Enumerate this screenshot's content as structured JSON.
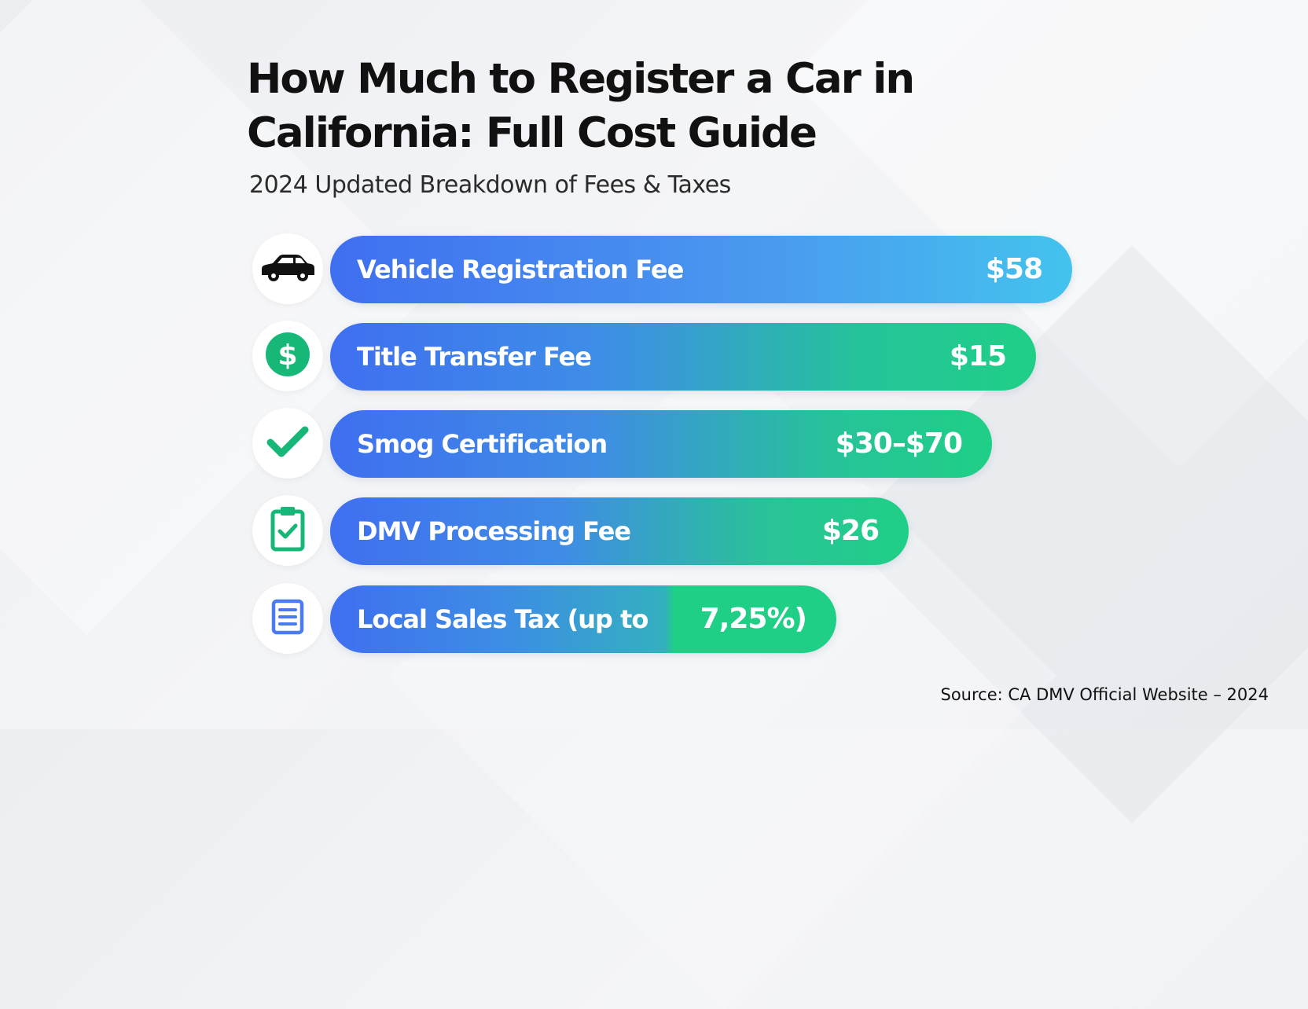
{
  "title": "How Much to Register a Car in California: Full Cost Guide",
  "subtitle": "2024 Updated Breakdown of Fees & Taxes",
  "items": [
    {
      "label": "Vehicle Registration Fee",
      "value": "$58",
      "icon": "car-icon"
    },
    {
      "label": "Title Transfer Fee",
      "value": "$15",
      "icon": "dollar-icon"
    },
    {
      "label": "Smog Certification",
      "value": "$30–$70",
      "icon": "checkmark-icon"
    },
    {
      "label": "DMV Processing Fee",
      "value": "$26",
      "icon": "clipboard-check-icon"
    },
    {
      "label": "Local Sales Tax (up to",
      "value": "7,25%)",
      "icon": "document-list-icon"
    }
  ],
  "source": "Source: CA DMV Official Website – 2024",
  "colors": {
    "bar_blue": "#3f6ff0",
    "bar_cyan": "#41bff0",
    "bar_green": "#1fcf86",
    "icon_green": "#17b877",
    "icon_blue": "#4a7bf0"
  }
}
